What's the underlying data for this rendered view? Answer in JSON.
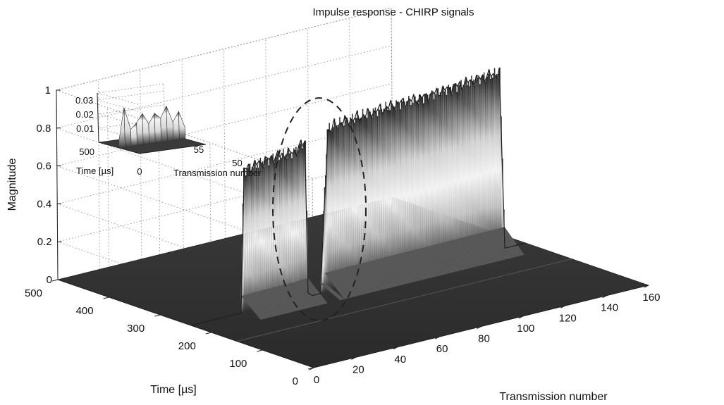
{
  "chart_data": [
    {
      "type": "surface",
      "title": "Impulse response - CHIRP signals",
      "xlabel": "Transmission number",
      "ylabel": "Time [µs]",
      "zlabel": "Magnitude",
      "x_ticks": [
        "0",
        "20",
        "40",
        "60",
        "80",
        "100",
        "120",
        "140",
        "160"
      ],
      "y_ticks": [
        "0",
        "100",
        "200",
        "300",
        "400",
        "500"
      ],
      "z_ticks": [
        "0",
        "0.2",
        "0.4",
        "0.6",
        "0.8",
        "1"
      ],
      "xlim": [
        0,
        160
      ],
      "ylim": [
        0,
        500
      ],
      "zlim": [
        0,
        1
      ],
      "grid": true,
      "colormap": "gray",
      "series": [
        {
          "peak_time_us": 240,
          "x": [
            0,
            10,
            20,
            24,
            26,
            30,
            40,
            50,
            55,
            56,
            58,
            62,
            66,
            70,
            80,
            90,
            100,
            110,
            120,
            130,
            140,
            148,
            150,
            152,
            160
          ],
          "peak_magnitude": [
            0.0,
            0.0,
            0.0,
            0.0,
            0.75,
            0.76,
            0.78,
            0.78,
            0.82,
            0.02,
            0.0,
            0.0,
            0.85,
            0.87,
            0.88,
            0.89,
            0.9,
            0.9,
            0.91,
            0.92,
            0.93,
            0.93,
            0.0,
            0.0,
            0.0
          ]
        }
      ]
    },
    {
      "type": "surface",
      "xlabel": "Transmission number",
      "ylabel": "Time [µs]",
      "x_ticks": [
        "0",
        "50",
        "55"
      ],
      "y_ticks": [
        "500"
      ],
      "z_ticks": [
        "0.01",
        "0.02",
        "0.03"
      ],
      "zlim": [
        0,
        0.035
      ],
      "x": [
        0,
        5,
        10,
        15,
        20,
        25,
        30,
        35,
        40,
        45,
        50,
        55
      ],
      "peak_magnitude": [
        0.005,
        0.028,
        0.012,
        0.016,
        0.022,
        0.014,
        0.021,
        0.017,
        0.025,
        0.013,
        0.02,
        0.008
      ]
    }
  ]
}
